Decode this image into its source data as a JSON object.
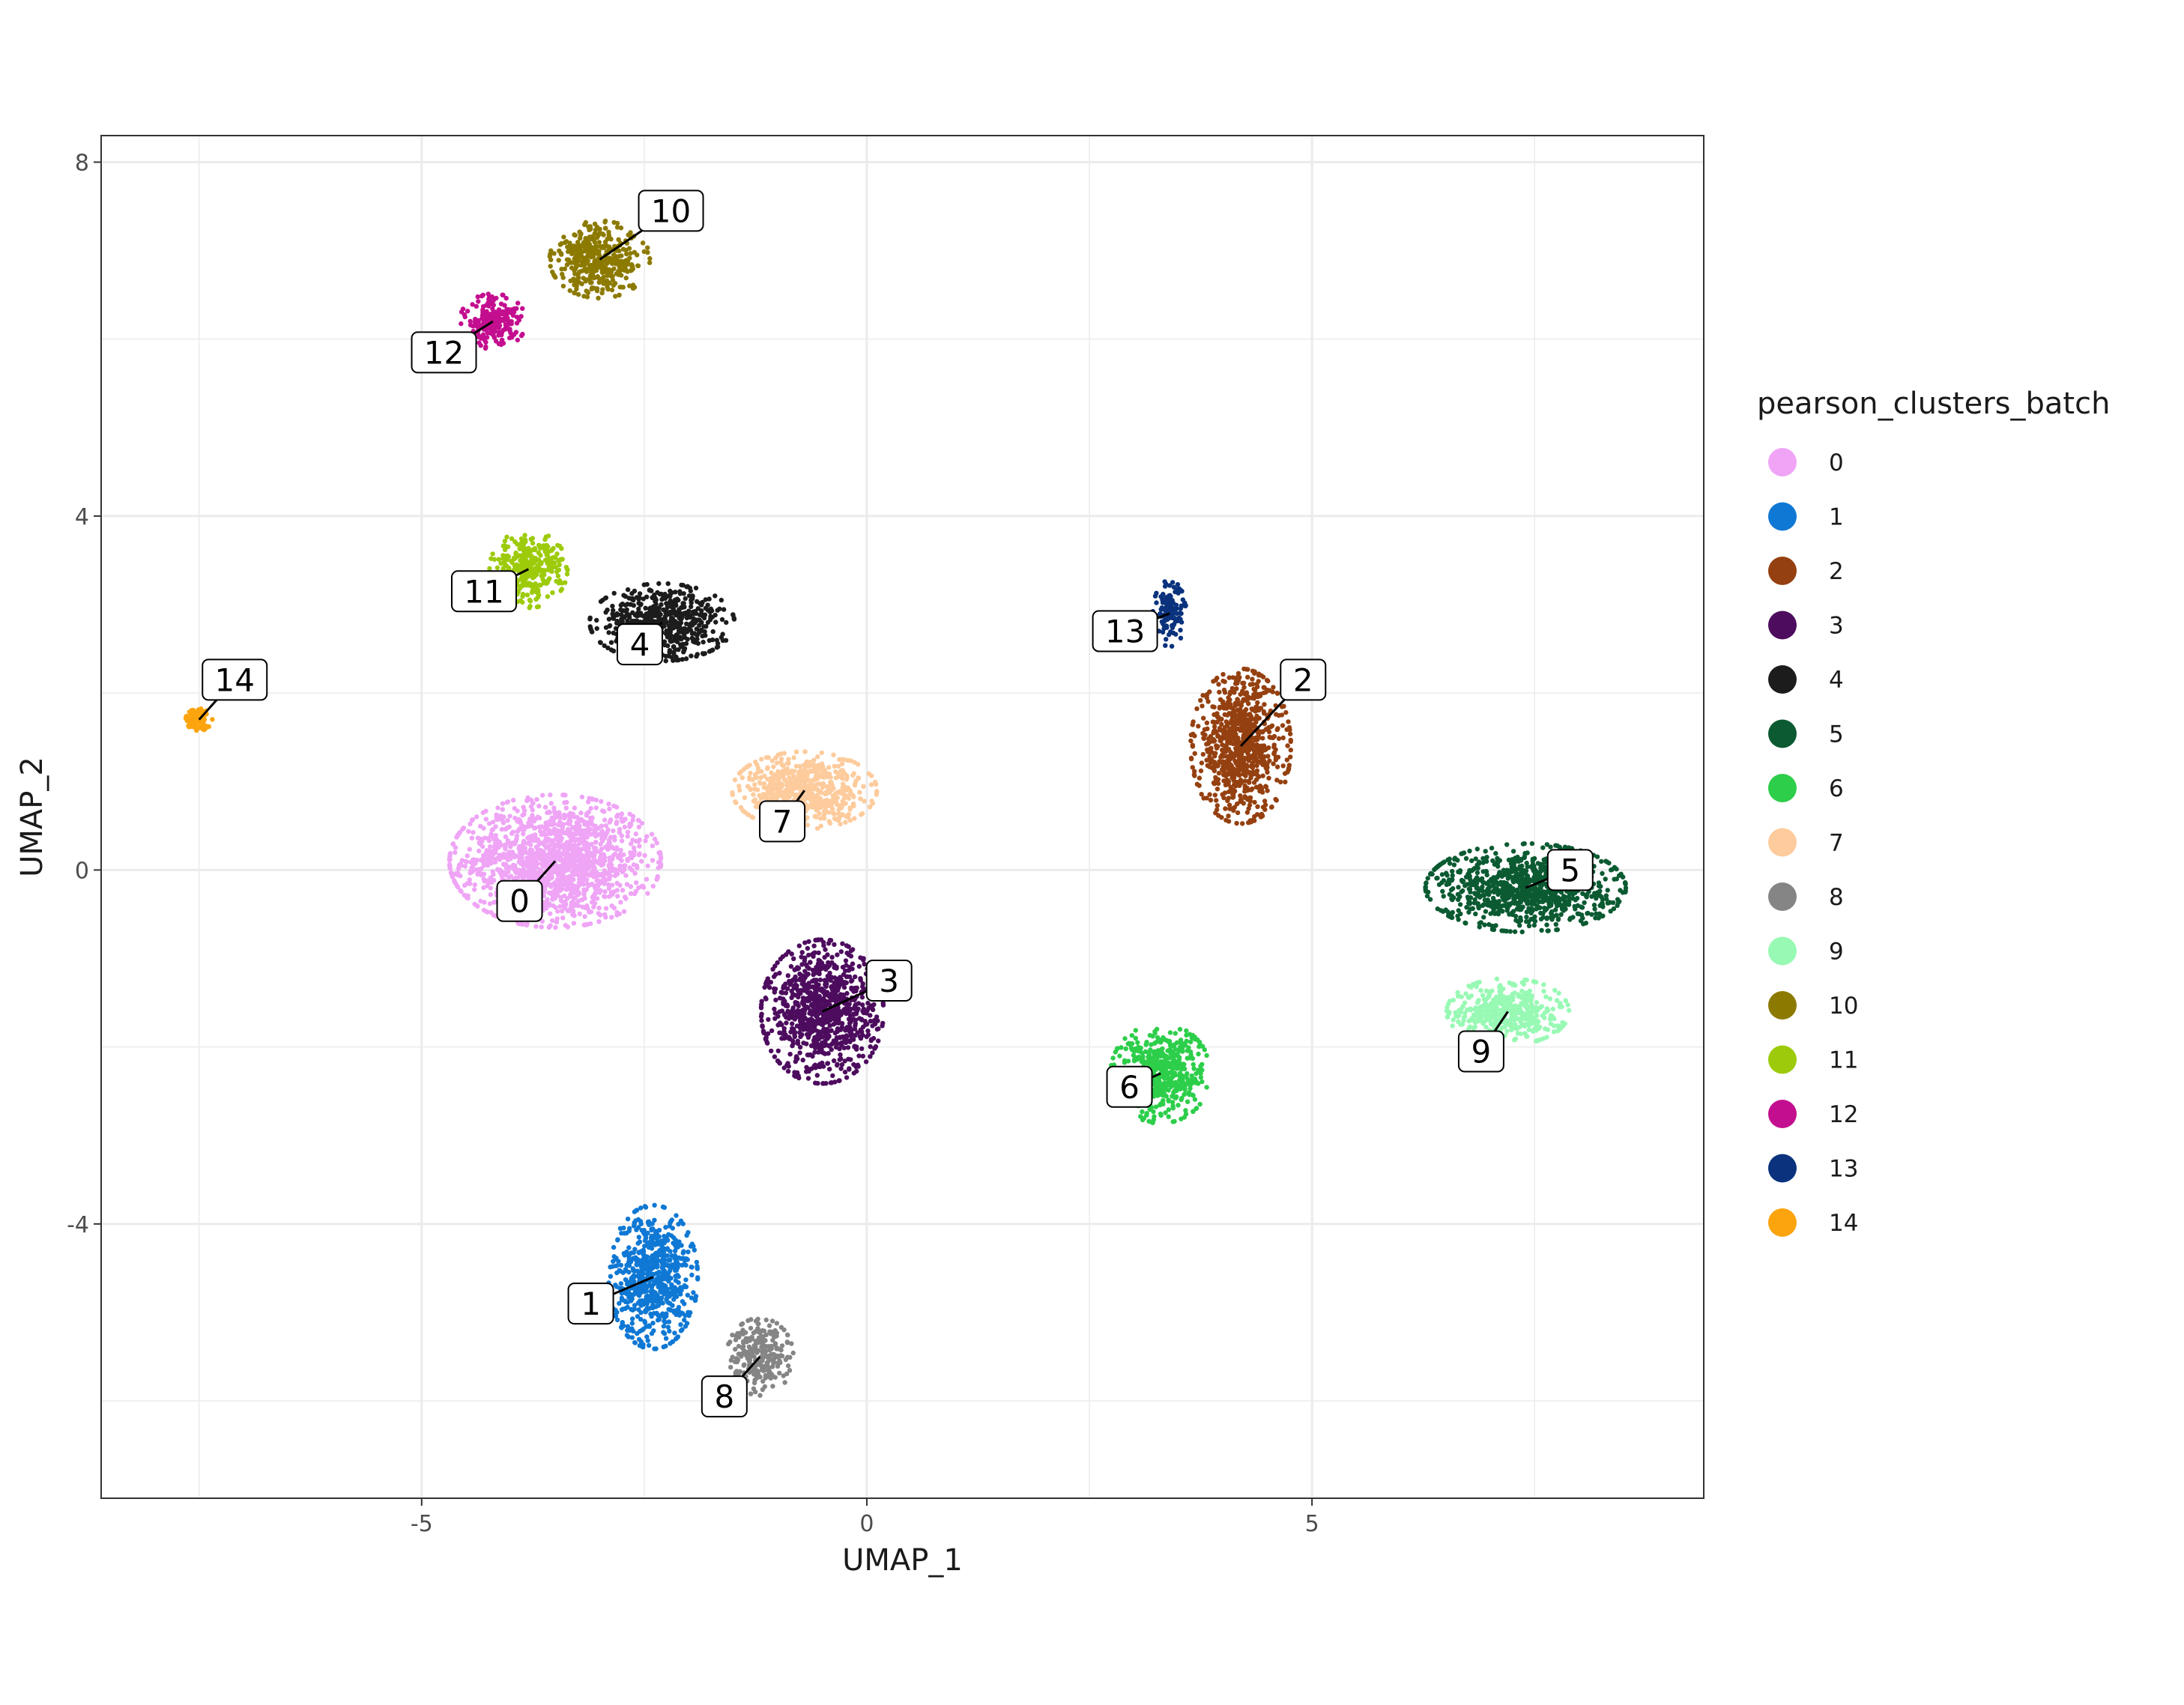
{
  "chart_data": {
    "type": "scatter",
    "title": "",
    "xlabel": "UMAP_1",
    "ylabel": "UMAP_2",
    "xlim": [
      -8.6,
      9.4
    ],
    "ylim": [
      -7.1,
      8.3
    ],
    "xticks": [
      -5,
      0,
      5
    ],
    "yticks": [
      8,
      4,
      0,
      -4
    ],
    "xtick_labels": [
      "-5",
      "0",
      "5"
    ],
    "ytick_labels": [
      "8",
      "4",
      "0",
      "-4"
    ],
    "grid": true,
    "legend_position": "right",
    "legend_title": "pearson_clusters_batch",
    "clusters": [
      {
        "name": "0",
        "color": "#EFA4F6",
        "center": [
          -3.5,
          0.1
        ],
        "spread": [
          0.95,
          0.6
        ],
        "label_pos": [
          -3.9,
          -0.35
        ]
      },
      {
        "name": "1",
        "color": "#0F78D4",
        "center": [
          -2.4,
          -4.6
        ],
        "spread": [
          0.4,
          0.65
        ],
        "label_pos": [
          -3.1,
          -4.9
        ]
      },
      {
        "name": "2",
        "color": "#954010",
        "center": [
          4.2,
          1.4
        ],
        "spread": [
          0.45,
          0.7
        ],
        "label_pos": [
          4.9,
          2.15
        ]
      },
      {
        "name": "3",
        "color": "#4D0C5E",
        "center": [
          -0.5,
          -1.6
        ],
        "spread": [
          0.55,
          0.65
        ],
        "label_pos": [
          0.25,
          -1.25
        ]
      },
      {
        "name": "4",
        "color": "#1C1C1C",
        "center": [
          -2.3,
          2.8
        ],
        "spread": [
          0.65,
          0.35
        ],
        "label_pos": [
          -2.55,
          2.55
        ]
      },
      {
        "name": "5",
        "color": "#0B5A32",
        "center": [
          7.4,
          -0.2
        ],
        "spread": [
          0.9,
          0.4
        ],
        "label_pos": [
          7.9,
          0.0
        ]
      },
      {
        "name": "6",
        "color": "#2DCE4A",
        "center": [
          3.3,
          -2.3
        ],
        "spread": [
          0.45,
          0.45
        ],
        "label_pos": [
          2.95,
          -2.45
        ]
      },
      {
        "name": "7",
        "color": "#FDCB9C",
        "center": [
          -0.7,
          0.9
        ],
        "spread": [
          0.65,
          0.35
        ],
        "label_pos": [
          -0.95,
          0.55
        ]
      },
      {
        "name": "8",
        "color": "#858585",
        "center": [
          -1.2,
          -5.5
        ],
        "spread": [
          0.3,
          0.35
        ],
        "label_pos": [
          -1.6,
          -5.95
        ]
      },
      {
        "name": "9",
        "color": "#98F9B4",
        "center": [
          7.2,
          -1.6
        ],
        "spread": [
          0.55,
          0.3
        ],
        "label_pos": [
          6.9,
          -2.05
        ]
      },
      {
        "name": "10",
        "color": "#8C7A00",
        "center": [
          -3.0,
          6.9
        ],
        "spread": [
          0.45,
          0.35
        ],
        "label_pos": [
          -2.2,
          7.45
        ]
      },
      {
        "name": "11",
        "color": "#9DCB0B",
        "center": [
          -3.8,
          3.4
        ],
        "spread": [
          0.35,
          0.35
        ],
        "label_pos": [
          -4.3,
          3.15
        ]
      },
      {
        "name": "12",
        "color": "#C30E8F",
        "center": [
          -4.2,
          6.2
        ],
        "spread": [
          0.3,
          0.25
        ],
        "label_pos": [
          -4.75,
          5.85
        ]
      },
      {
        "name": "13",
        "color": "#0A327D",
        "center": [
          3.4,
          2.9
        ],
        "spread": [
          0.15,
          0.3
        ],
        "label_pos": [
          2.9,
          2.7
        ]
      },
      {
        "name": "14",
        "color": "#FBA40E",
        "center": [
          -7.5,
          1.7
        ],
        "spread": [
          0.12,
          0.1
        ],
        "label_pos": [
          -7.1,
          2.15
        ]
      }
    ]
  }
}
